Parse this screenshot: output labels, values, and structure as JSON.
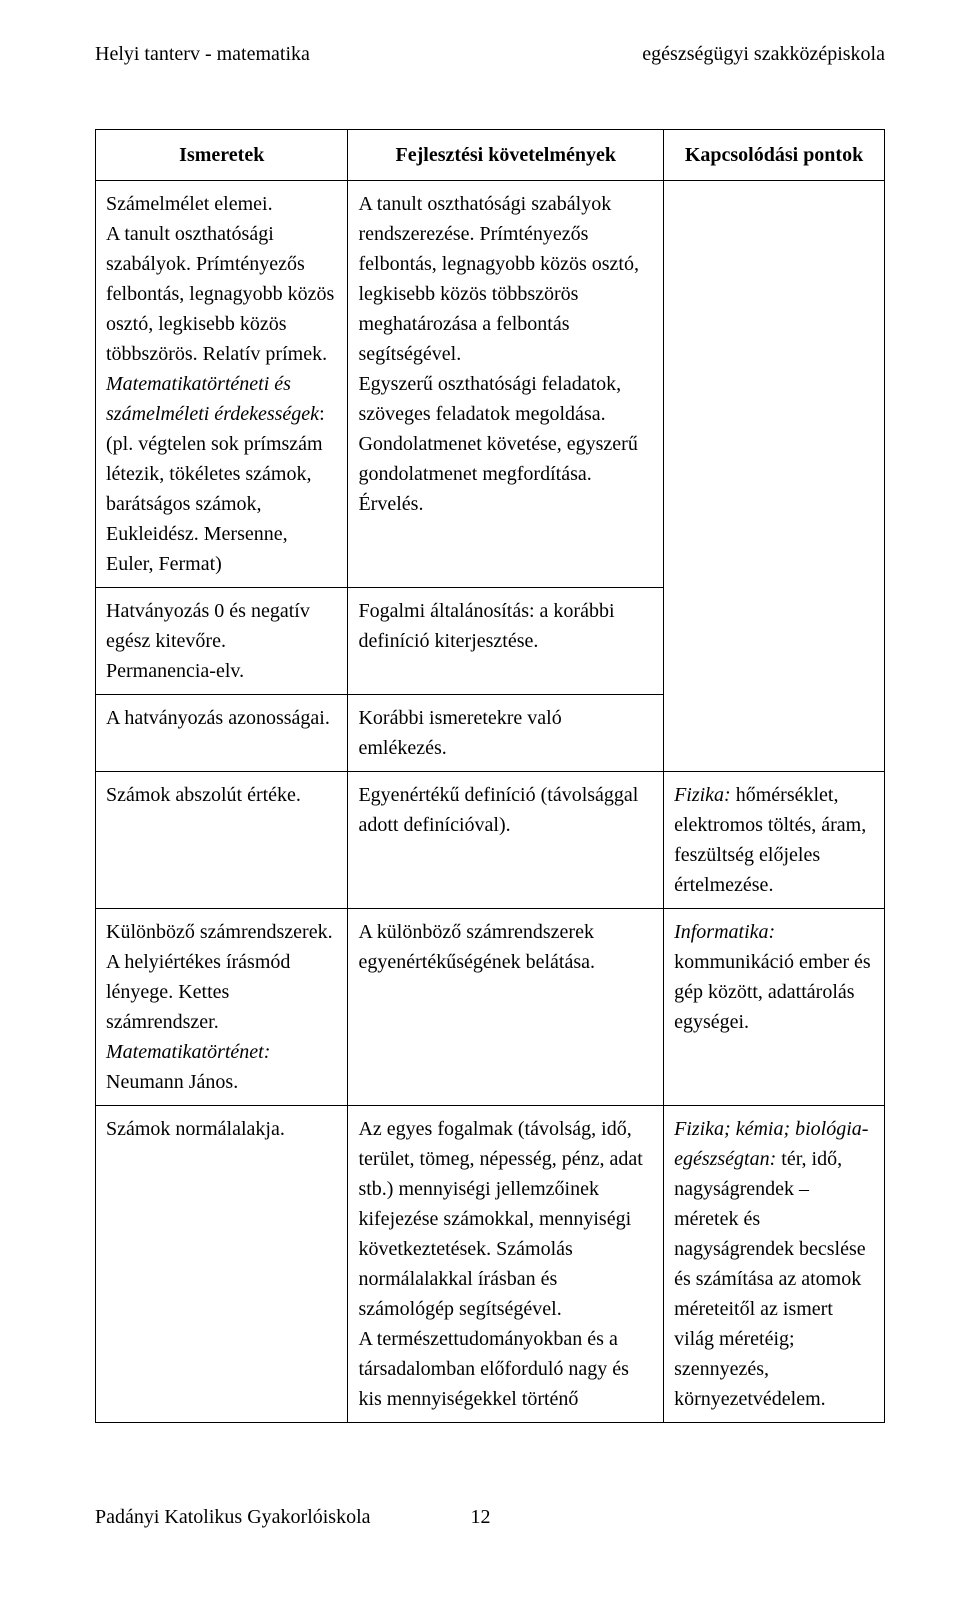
{
  "header": {
    "left": "Helyi tanterv  - matematika",
    "right": "egészségügyi szakközépiskola"
  },
  "table": {
    "head": {
      "c1": "Ismeretek",
      "c2": "Fejlesztési követelmények",
      "c3": "Kapcsolódási pontok"
    },
    "rows": {
      "r1": {
        "c1a": "Számelmélet elemei.\nA tanult oszthatósági szabályok. Prímtényezős felbontás, legnagyobb közös osztó, legkisebb közös többszörös. Relatív prímek.",
        "c1b": "Matematikatörténeti és számelméleti érdekességek",
        "c1c": ": (pl. végtelen sok prímszám létezik, tökéletes számok, barátságos számok, Eukleidész. Mersenne, Euler, Fermat)",
        "c2": "A tanult oszthatósági szabályok rendszerezése. Prímtényezős felbontás, legnagyobb közös osztó, legkisebb közös többszörös meghatározása a felbontás segítségével.\nEgyszerű oszthatósági feladatok, szöveges feladatok megoldása. Gondolatmenet követése, egyszerű gondolatmenet megfordítása.\nÉrvelés."
      },
      "r2": {
        "c1": "Hatványozás 0 és negatív egész kitevőre. Permanencia-elv.",
        "c2": "Fogalmi általánosítás: a korábbi definíció kiterjesztése."
      },
      "r3": {
        "c1": "A hatványozás azonosságai.",
        "c2": "Korábbi ismeretekre való emlékezés."
      },
      "r4": {
        "c1": "Számok abszolút értéke.",
        "c2": "Egyenértékű definíció (távolsággal adott definícióval).",
        "c3a": "Fizika:",
        "c3b": " hőmérséklet, elektromos töltés, áram, feszültség előjeles értelmezése."
      },
      "r5": {
        "c1a": "Különböző számrendszerek. A helyiértékes írásmód lényege. Kettes számrendszer.",
        "c1b": "Matematikatörténet:",
        "c1c": " Neumann János.",
        "c2": "A különböző számrendszerek egyenértékűségének belátása.",
        "c3a": "Informatika:",
        "c3b": " kommunikáció ember és gép között, adattárolás egységei."
      },
      "r6": {
        "c1": "Számok normálalakja.",
        "c2": "Az egyes fogalmak (távolság, idő, terület, tömeg, népesség, pénz, adat stb.) mennyiségi jellemzőinek kifejezése számokkal, mennyiségi következtetések. Számolás normálalakkal írásban és számológép segítségével.\nA természettudományokban és a társadalomban előforduló nagy és kis mennyiségekkel történő",
        "c3a": "Fizika; kémia; biológia-egészségtan:",
        "c3b": " tér, idő, nagyságrendek – méretek és nagyságrendek becslése és számítása az atomok méreteitől az ismert világ méretéig; szennyezés, környezetvédelem."
      }
    }
  },
  "footer": {
    "left": "Padányi Katolikus Gyakorlóiskola",
    "page": "12"
  }
}
